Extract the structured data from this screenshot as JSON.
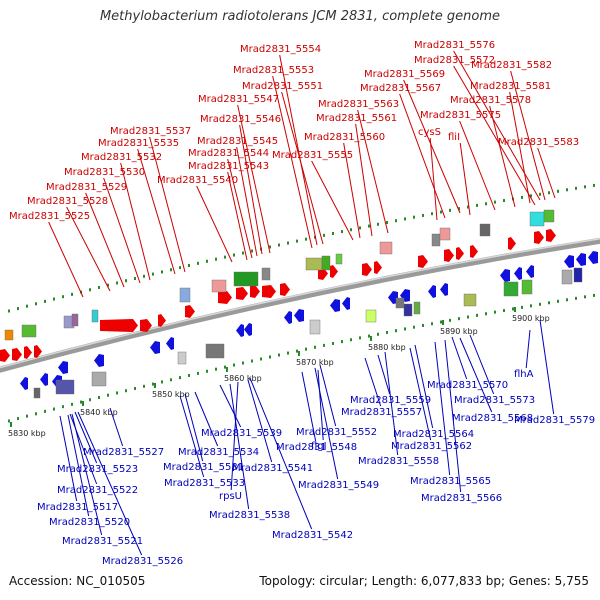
{
  "title": "Methylobacterium radiotolerans JCM 2831, complete genome",
  "accession": "Accession: NC_010505",
  "summary": "Topology: circular; Length: 6,077,833 bp; Genes: 5,755",
  "colors": {
    "forward": "#dd0000",
    "reverse": "#0000dd",
    "backbone": "#888888",
    "tick": "#228822"
  },
  "ticks": [
    "5830 kbp",
    "5840 kbp",
    "5850 kbp",
    "5860 kbp",
    "5870 kbp",
    "5880 kbp",
    "5890 kbp",
    "5900 kbp"
  ],
  "top_labels": [
    "Mrad2831_5554",
    "Mrad2831_5576",
    "Mrad2831_5572",
    "Mrad2831_5582",
    "Mrad2831_5553",
    "Mrad2831_5569",
    "Mrad2831_5551",
    "Mrad2831_5567",
    "Mrad2831_5581",
    "Mrad2831_5547",
    "Mrad2831_5563",
    "Mrad2831_5578",
    "Mrad2831_5546",
    "Mrad2831_5561",
    "Mrad2831_5575",
    "Mrad2831_5537",
    "cysS",
    "Mrad2831_5535",
    "Mrad2831_5545",
    "Mrad2831_5560",
    "fliI",
    "Mrad2831_5583",
    "Mrad2831_5544",
    "Mrad2831_5555",
    "Mrad2831_5532",
    "Mrad2831_5543",
    "Mrad2831_5530",
    "Mrad2831_5540",
    "Mrad2831_5529",
    "Mrad2831_5528",
    "Mrad2831_5525"
  ],
  "bottom_labels": [
    "flhA",
    "Mrad2831_5570",
    "Mrad2831_5559",
    "Mrad2831_5573",
    "Mrad2831_5557",
    "Mrad2831_5568",
    "Mrad2831_5579",
    "Mrad2831_5539",
    "Mrad2831_5552",
    "Mrad2831_5564",
    "flgI",
    "Mrad2831_5548",
    "Mrad2831_5562",
    "Mrad2831_5527",
    "Mrad2831_5534",
    "Mrad2831_5558",
    "Mrad2831_5523",
    "Mrad2831_5531",
    "Mrad2831_5541",
    "Mrad2831_5549",
    "Mrad2831_5565",
    "Mrad2831_5522",
    "Mrad2831_5533",
    "rpsU",
    "Mrad2831_5566",
    "Mrad2831_5517",
    "Mrad2831_5538",
    "Mrad2831_5520",
    "Mrad2831_5542",
    "Mrad2831_5521",
    "Mrad2831_5526"
  ]
}
